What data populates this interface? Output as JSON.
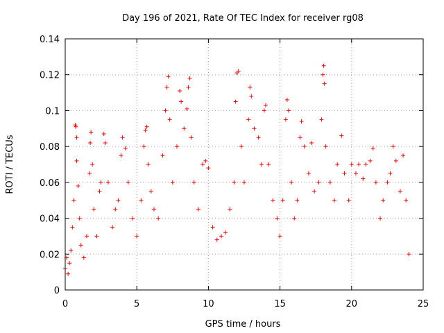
{
  "chart_data": {
    "type": "scatter",
    "title": "Day 196 of 2021, Rate Of TEC Index for receiver rg08",
    "xlabel": "GPS time / hours",
    "ylabel": "ROTI / TECUs",
    "xlim": [
      0,
      25
    ],
    "ylim": [
      0,
      0.14
    ],
    "x_ticks": [
      0,
      5,
      10,
      15,
      20,
      25
    ],
    "x_tick_labels": [
      "0",
      "5",
      "10",
      "15",
      "20",
      "25"
    ],
    "y_ticks": [
      0,
      0.02,
      0.04,
      0.06,
      0.08,
      0.1,
      0.12,
      0.14
    ],
    "y_tick_labels": [
      "0",
      "0.02",
      "0.04",
      "0.06",
      "0.08",
      "0.1",
      "0.12",
      "0.14"
    ],
    "grid": true,
    "marker": "+",
    "color": "#ff0000",
    "series": [
      {
        "name": "",
        "points": [
          [
            0.0,
            0.012
          ],
          [
            0.1,
            0.018
          ],
          [
            0.2,
            0.009
          ],
          [
            0.3,
            0.015
          ],
          [
            0.4,
            0.022
          ],
          [
            0.5,
            0.035
          ],
          [
            0.6,
            0.05
          ],
          [
            0.7,
            0.092
          ],
          [
            0.75,
            0.091
          ],
          [
            0.8,
            0.085
          ],
          [
            0.8,
            0.072
          ],
          [
            0.9,
            0.058
          ],
          [
            1.0,
            0.04
          ],
          [
            1.1,
            0.025
          ],
          [
            1.3,
            0.018
          ],
          [
            1.5,
            0.03
          ],
          [
            1.7,
            0.065
          ],
          [
            1.75,
            0.082
          ],
          [
            1.8,
            0.088
          ],
          [
            1.9,
            0.07
          ],
          [
            2.0,
            0.045
          ],
          [
            2.2,
            0.03
          ],
          [
            2.4,
            0.055
          ],
          [
            2.5,
            0.06
          ],
          [
            2.7,
            0.087
          ],
          [
            2.8,
            0.082
          ],
          [
            3.0,
            0.06
          ],
          [
            3.3,
            0.035
          ],
          [
            3.5,
            0.045
          ],
          [
            3.7,
            0.05
          ],
          [
            3.9,
            0.075
          ],
          [
            4.0,
            0.085
          ],
          [
            4.2,
            0.079
          ],
          [
            4.4,
            0.06
          ],
          [
            4.7,
            0.04
          ],
          [
            5.0,
            0.03
          ],
          [
            5.3,
            0.05
          ],
          [
            5.5,
            0.08
          ],
          [
            5.6,
            0.089
          ],
          [
            5.7,
            0.091
          ],
          [
            5.8,
            0.07
          ],
          [
            6.0,
            0.055
          ],
          [
            6.2,
            0.045
          ],
          [
            6.5,
            0.04
          ],
          [
            6.8,
            0.075
          ],
          [
            7.0,
            0.1
          ],
          [
            7.1,
            0.113
          ],
          [
            7.2,
            0.119
          ],
          [
            7.3,
            0.095
          ],
          [
            7.5,
            0.06
          ],
          [
            7.8,
            0.08
          ],
          [
            8.0,
            0.111
          ],
          [
            8.1,
            0.105
          ],
          [
            8.3,
            0.09
          ],
          [
            8.5,
            0.101
          ],
          [
            8.6,
            0.113
          ],
          [
            8.7,
            0.118
          ],
          [
            8.8,
            0.085
          ],
          [
            9.0,
            0.06
          ],
          [
            9.3,
            0.045
          ],
          [
            9.6,
            0.07
          ],
          [
            9.8,
            0.072
          ],
          [
            10.0,
            0.068
          ],
          [
            10.3,
            0.035
          ],
          [
            10.6,
            0.028
          ],
          [
            10.9,
            0.03
          ],
          [
            11.2,
            0.032
          ],
          [
            11.5,
            0.045
          ],
          [
            11.8,
            0.06
          ],
          [
            11.9,
            0.105
          ],
          [
            12.0,
            0.121
          ],
          [
            12.1,
            0.122
          ],
          [
            12.3,
            0.08
          ],
          [
            12.5,
            0.06
          ],
          [
            12.8,
            0.095
          ],
          [
            12.9,
            0.113
          ],
          [
            13.0,
            0.108
          ],
          [
            13.2,
            0.09
          ],
          [
            13.5,
            0.085
          ],
          [
            13.7,
            0.07
          ],
          [
            13.9,
            0.1
          ],
          [
            14.0,
            0.103
          ],
          [
            14.2,
            0.07
          ],
          [
            14.5,
            0.05
          ],
          [
            14.8,
            0.04
          ],
          [
            15.0,
            0.03
          ],
          [
            15.2,
            0.05
          ],
          [
            15.4,
            0.095
          ],
          [
            15.5,
            0.106
          ],
          [
            15.6,
            0.1
          ],
          [
            15.8,
            0.06
          ],
          [
            16.0,
            0.04
          ],
          [
            16.2,
            0.05
          ],
          [
            16.4,
            0.085
          ],
          [
            16.5,
            0.094
          ],
          [
            16.7,
            0.08
          ],
          [
            17.0,
            0.065
          ],
          [
            17.2,
            0.082
          ],
          [
            17.4,
            0.055
          ],
          [
            17.7,
            0.06
          ],
          [
            17.9,
            0.095
          ],
          [
            18.0,
            0.12
          ],
          [
            18.05,
            0.125
          ],
          [
            18.1,
            0.115
          ],
          [
            18.2,
            0.08
          ],
          [
            18.5,
            0.06
          ],
          [
            18.8,
            0.05
          ],
          [
            19.0,
            0.07
          ],
          [
            19.3,
            0.086
          ],
          [
            19.5,
            0.065
          ],
          [
            19.8,
            0.05
          ],
          [
            20.0,
            0.07
          ],
          [
            20.3,
            0.065
          ],
          [
            20.5,
            0.07
          ],
          [
            20.8,
            0.062
          ],
          [
            21.0,
            0.07
          ],
          [
            21.3,
            0.072
          ],
          [
            21.5,
            0.079
          ],
          [
            21.7,
            0.06
          ],
          [
            22.0,
            0.04
          ],
          [
            22.2,
            0.05
          ],
          [
            22.5,
            0.06
          ],
          [
            22.7,
            0.065
          ],
          [
            22.9,
            0.08
          ],
          [
            23.1,
            0.072
          ],
          [
            23.4,
            0.055
          ],
          [
            23.6,
            0.075
          ],
          [
            23.8,
            0.05
          ],
          [
            24.0,
            0.02
          ]
        ]
      }
    ]
  }
}
